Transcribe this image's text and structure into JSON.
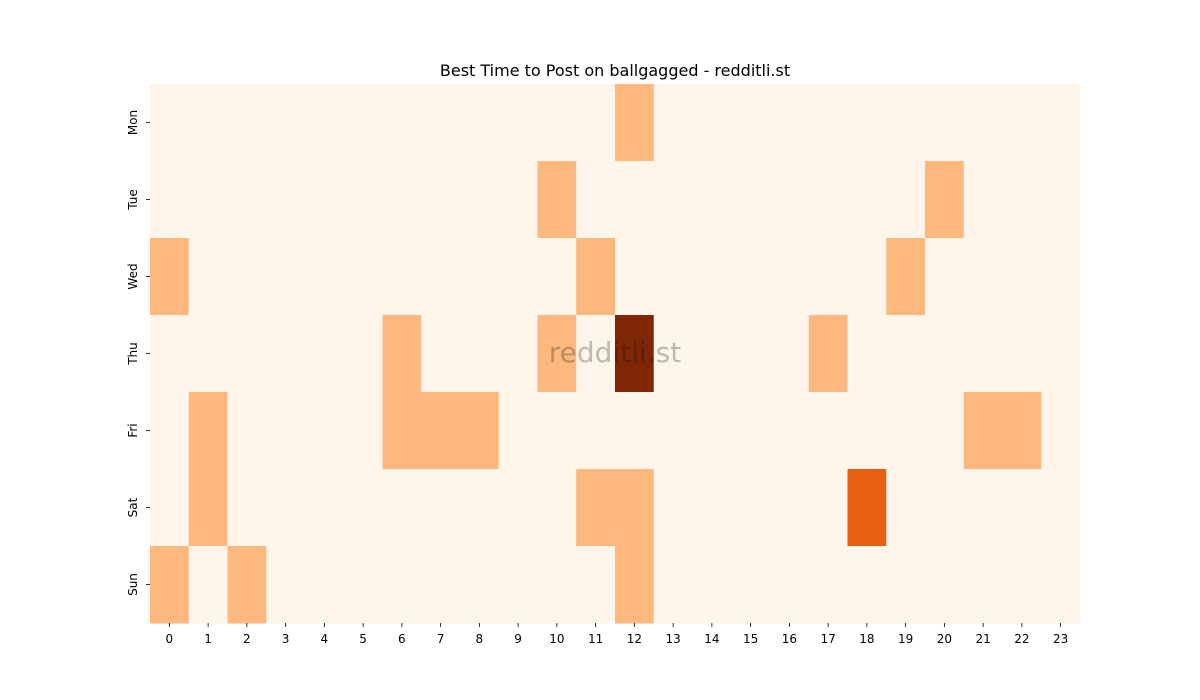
{
  "chart_data": {
    "type": "heatmap",
    "title": "Best Time to Post on ballgagged - redditli.st",
    "xlabel": "",
    "ylabel": "",
    "x": [
      "0",
      "1",
      "2",
      "3",
      "4",
      "5",
      "6",
      "7",
      "8",
      "9",
      "10",
      "11",
      "12",
      "13",
      "14",
      "15",
      "16",
      "17",
      "18",
      "19",
      "20",
      "21",
      "22",
      "23"
    ],
    "y": [
      "Mon",
      "Tue",
      "Wed",
      "Thu",
      "Fri",
      "Sat",
      "Sun"
    ],
    "values": [
      [
        0,
        0,
        0,
        0,
        0,
        0,
        0,
        0,
        0,
        0,
        0,
        0,
        1,
        0,
        0,
        0,
        0,
        0,
        0,
        0,
        0,
        0,
        0,
        0
      ],
      [
        0,
        0,
        0,
        0,
        0,
        0,
        0,
        0,
        0,
        0,
        1,
        0,
        0,
        0,
        0,
        0,
        0,
        0,
        0,
        0,
        1,
        0,
        0,
        0
      ],
      [
        1,
        0,
        0,
        0,
        0,
        0,
        0,
        0,
        0,
        0,
        0,
        1,
        0,
        0,
        0,
        0,
        0,
        0,
        0,
        1,
        0,
        0,
        0,
        0
      ],
      [
        0,
        0,
        0,
        0,
        0,
        0,
        1,
        0,
        0,
        0,
        1,
        0,
        4,
        0,
        0,
        0,
        0,
        1,
        0,
        0,
        0,
        0,
        0,
        0
      ],
      [
        0,
        1,
        0,
        0,
        0,
        0,
        1,
        1,
        1,
        0,
        0,
        0,
        0,
        0,
        0,
        0,
        0,
        0,
        0,
        0,
        0,
        1,
        1,
        0
      ],
      [
        0,
        1,
        0,
        0,
        0,
        0,
        0,
        0,
        0,
        0,
        0,
        1,
        1,
        0,
        0,
        0,
        0,
        0,
        3,
        0,
        0,
        0,
        0,
        0
      ],
      [
        1,
        0,
        1,
        0,
        0,
        0,
        0,
        0,
        0,
        0,
        0,
        0,
        1,
        0,
        0,
        0,
        0,
        0,
        0,
        0,
        0,
        0,
        0,
        0
      ]
    ],
    "colormap": "Oranges",
    "color_levels": [
      "#fff5eb",
      "#fdb97d",
      "#fdb97d",
      "#e8600f",
      "#7f2704"
    ],
    "grid": false,
    "legend": "none"
  },
  "watermark": "redditli.st"
}
